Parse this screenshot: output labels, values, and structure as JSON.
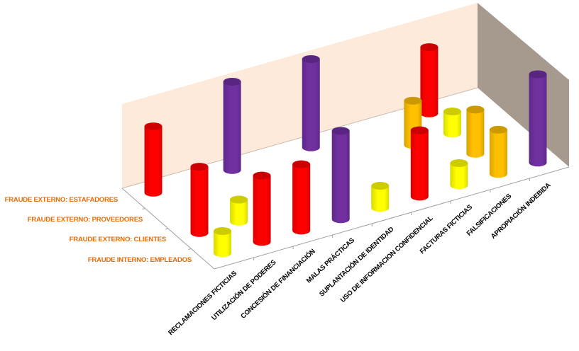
{
  "chart_data": {
    "type": "bar",
    "subtype": "3d-cylinder",
    "title": "",
    "xlabel": "",
    "ylabel": "",
    "categories": [
      "RECLAMACIONES FICTICIAS",
      "UTILIZACIÓN DE PODERES",
      "CONCESIÓN DE FINANCIACIÓN",
      "MALAS PRÁCTICAS",
      "SUPLANTACIÓN DE IDENTIDAD",
      "USO DE INFORMACION CONFIDENCIAL",
      "FACTURAS FICTICIAS",
      "FALSIFICACIONES",
      "APROPIACIÓN INDEBIDA"
    ],
    "series": [
      {
        "name": "FRAUDE INTERNO: EMPLEADOS",
        "values": [
          1,
          3,
          3,
          4,
          1,
          3,
          1,
          2,
          4
        ]
      },
      {
        "name": "FRAUDE EXTERNO: CLIENTES",
        "values": [
          3,
          1,
          0,
          0,
          0,
          0,
          0,
          2,
          0
        ]
      },
      {
        "name": "FRAUDE EXTERNO: PROVEEDORES",
        "values": [
          0,
          0,
          0,
          0,
          0,
          0,
          2,
          1,
          0
        ]
      },
      {
        "name": "FRAUDE EXTERNO: ESTAFADORES",
        "values": [
          3,
          0,
          4,
          0,
          4,
          0,
          0,
          3,
          0
        ]
      }
    ],
    "ylim": [
      0,
      4
    ],
    "grid": false,
    "legend": "none",
    "level_colors": {
      "1": {
        "body": "#FFFF00",
        "top": "#CCCC00",
        "shade": "#D9D900"
      },
      "2": {
        "body": "#FFC000",
        "top": "#CC9A00",
        "shade": "#D9A300"
      },
      "3": {
        "body": "#FF0000",
        "top": "#CC0000",
        "shade": "#D90000"
      },
      "4": {
        "body": "#7030A0",
        "top": "#582680",
        "shade": "#5E288A"
      }
    },
    "back_wall_color": "#FDEADA",
    "side_wall_color": "#A6998E",
    "series_label_color": "#E46C0A"
  }
}
